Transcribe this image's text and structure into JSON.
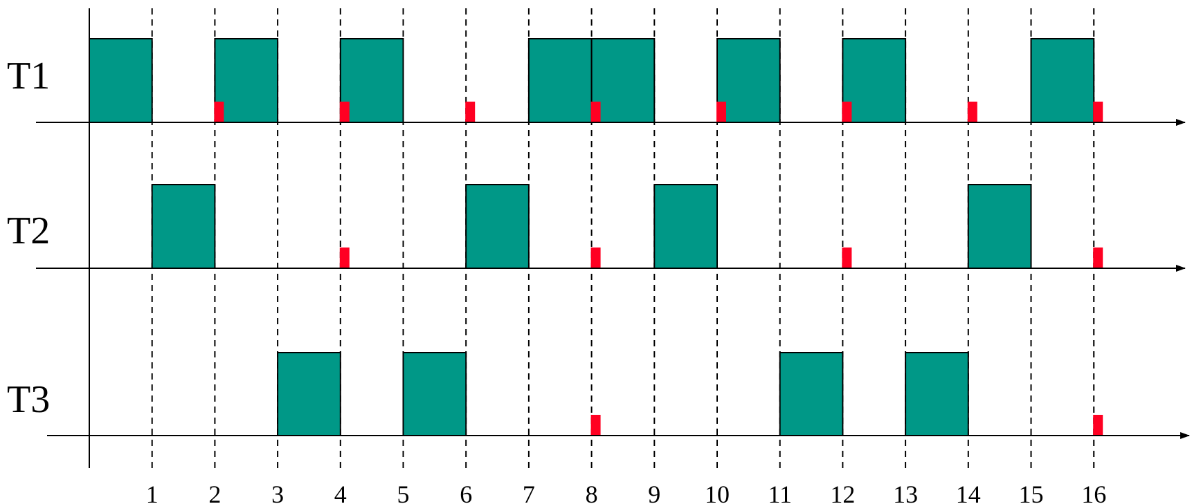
{
  "colors": {
    "execution": "#009887",
    "release": "#ff0022",
    "axis": "#000000",
    "background": "#ffffff"
  },
  "chart_data": {
    "type": "gantt",
    "time_ticks": [
      "1",
      "2",
      "3",
      "4",
      "5",
      "6",
      "7",
      "8",
      "9",
      "10",
      "11",
      "12",
      "13",
      "14",
      "15",
      "16"
    ],
    "time_range": [
      0,
      16
    ],
    "grid": "dashed vertical lines at each integer time unit",
    "tasks": [
      {
        "label": "T1",
        "executions": [
          [
            0,
            1
          ],
          [
            2,
            3
          ],
          [
            4,
            5
          ],
          [
            7,
            8
          ],
          [
            8,
            9
          ],
          [
            10,
            11
          ],
          [
            12,
            13
          ],
          [
            15,
            16
          ]
        ],
        "release_markers": [
          2,
          4,
          6,
          8,
          10,
          12,
          14,
          16
        ]
      },
      {
        "label": "T2",
        "executions": [
          [
            1,
            2
          ],
          [
            6,
            7
          ],
          [
            9,
            10
          ],
          [
            14,
            15
          ]
        ],
        "release_markers": [
          4,
          8,
          12,
          16
        ]
      },
      {
        "label": "T3",
        "executions": [
          [
            3,
            4
          ],
          [
            5,
            6
          ],
          [
            11,
            12
          ],
          [
            13,
            14
          ]
        ],
        "release_markers": [
          8,
          16
        ]
      }
    ]
  }
}
